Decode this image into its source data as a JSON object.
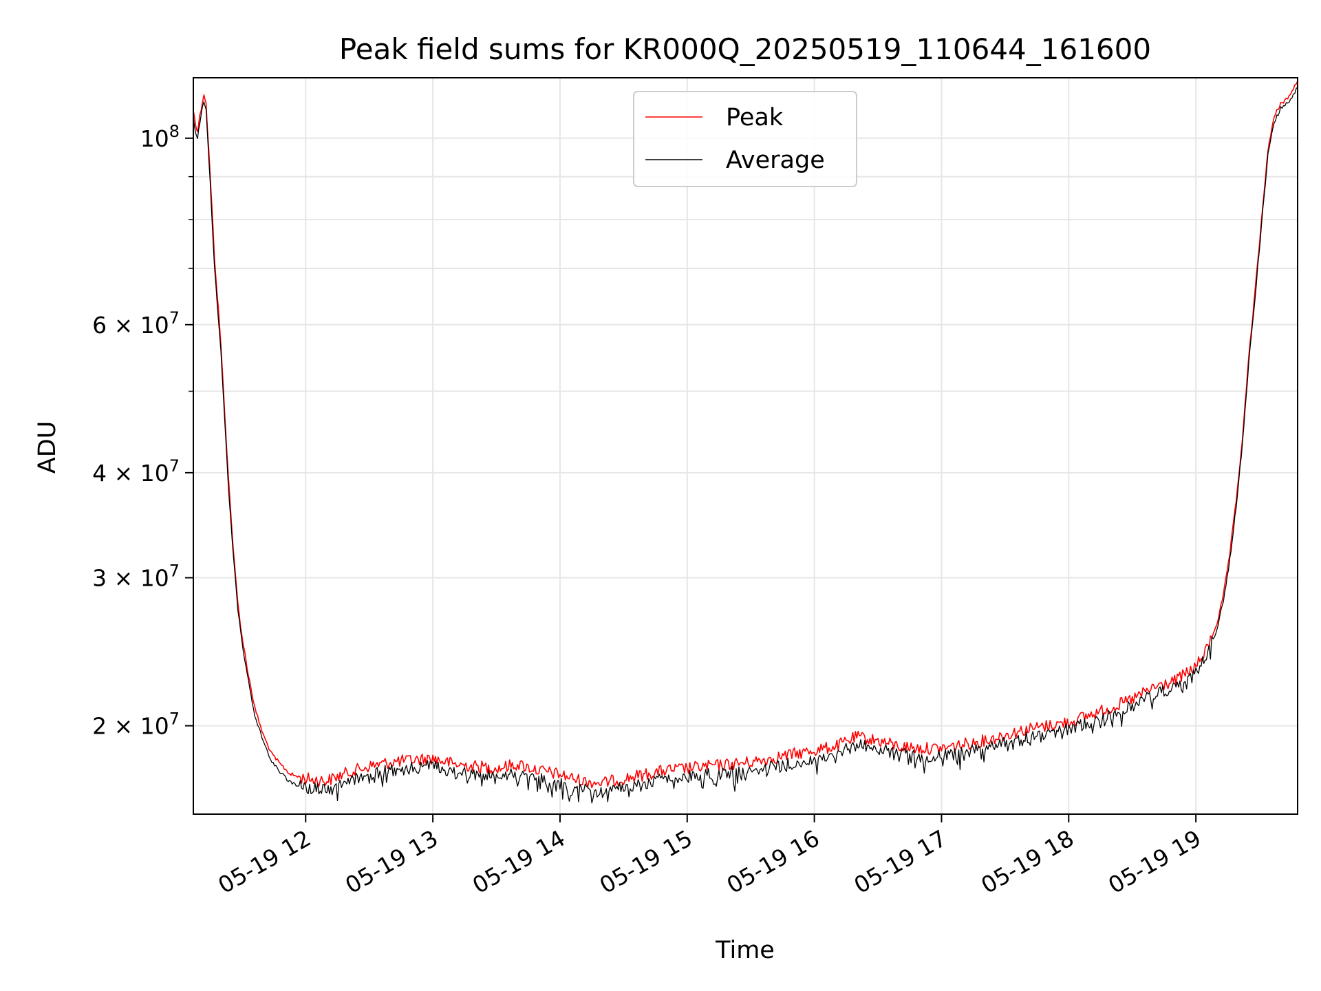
{
  "chart_data": {
    "type": "line",
    "title": "Peak field sums for KR000Q_20250519_110644_161600",
    "xlabel": "Time",
    "ylabel": "ADU",
    "yscale": "log",
    "xlim": [
      "2025-05-19 11:07",
      "2025-05-19 19:48"
    ],
    "ylim": [
      15700000,
      118000000
    ],
    "grid": true,
    "legend": {
      "placement": "top-center",
      "entries": [
        {
          "label": "Peak",
          "color": "#ff0000"
        },
        {
          "label": "Average",
          "color": "#000000"
        }
      ]
    },
    "x_ticks": [
      {
        "value": "2025-05-19 12:00",
        "label": "05-19 12"
      },
      {
        "value": "2025-05-19 13:00",
        "label": "05-19 13"
      },
      {
        "value": "2025-05-19 14:00",
        "label": "05-19 14"
      },
      {
        "value": "2025-05-19 15:00",
        "label": "05-19 15"
      },
      {
        "value": "2025-05-19 16:00",
        "label": "05-19 16"
      },
      {
        "value": "2025-05-19 17:00",
        "label": "05-19 17"
      },
      {
        "value": "2025-05-19 18:00",
        "label": "05-19 18"
      },
      {
        "value": "2025-05-19 19:00",
        "label": "05-19 19"
      }
    ],
    "y_ticks": [
      {
        "value": 20000000,
        "mant": "2",
        "exp": "7"
      },
      {
        "value": 30000000,
        "mant": "3",
        "exp": "7"
      },
      {
        "value": 40000000,
        "mant": "4",
        "exp": "7"
      },
      {
        "value": 60000000,
        "mant": "6",
        "exp": "7"
      },
      {
        "value": 100000000,
        "mant": "",
        "exp": "8"
      }
    ],
    "y_minor_ticks": [
      50000000,
      70000000,
      80000000,
      90000000
    ],
    "series": [
      {
        "name": "Peak",
        "color": "#ff0000",
        "x": [
          "2025-05-19 11:07",
          "2025-05-19 11:08",
          "2025-05-19 11:09",
          "2025-05-19 11:10",
          "2025-05-19 11:12",
          "2025-05-19 11:13",
          "2025-05-19 11:15",
          "2025-05-19 11:17",
          "2025-05-19 11:20",
          "2025-05-19 11:22",
          "2025-05-19 11:24",
          "2025-05-19 11:26",
          "2025-05-19 11:28",
          "2025-05-19 11:30",
          "2025-05-19 11:33",
          "2025-05-19 11:36",
          "2025-05-19 11:40",
          "2025-05-19 11:44",
          "2025-05-19 11:48",
          "2025-05-19 11:53",
          "2025-05-19 12:00",
          "2025-05-19 12:10",
          "2025-05-19 12:20",
          "2025-05-19 12:30",
          "2025-05-19 12:40",
          "2025-05-19 12:50",
          "2025-05-19 13:00",
          "2025-05-19 13:10",
          "2025-05-19 13:20",
          "2025-05-19 13:30",
          "2025-05-19 13:40",
          "2025-05-19 13:50",
          "2025-05-19 14:00",
          "2025-05-19 14:10",
          "2025-05-19 14:20",
          "2025-05-19 14:30",
          "2025-05-19 14:40",
          "2025-05-19 14:50",
          "2025-05-19 15:00",
          "2025-05-19 15:10",
          "2025-05-19 15:20",
          "2025-05-19 15:30",
          "2025-05-19 15:40",
          "2025-05-19 15:50",
          "2025-05-19 16:00",
          "2025-05-19 16:10",
          "2025-05-19 16:20",
          "2025-05-19 16:30",
          "2025-05-19 16:40",
          "2025-05-19 16:50",
          "2025-05-19 17:00",
          "2025-05-19 17:10",
          "2025-05-19 17:20",
          "2025-05-19 17:30",
          "2025-05-19 17:40",
          "2025-05-19 17:50",
          "2025-05-19 18:00",
          "2025-05-19 18:10",
          "2025-05-19 18:20",
          "2025-05-19 18:30",
          "2025-05-19 18:40",
          "2025-05-19 18:50",
          "2025-05-19 19:00",
          "2025-05-19 19:05",
          "2025-05-19 19:10",
          "2025-05-19 19:13",
          "2025-05-19 19:16",
          "2025-05-19 19:19",
          "2025-05-19 19:22",
          "2025-05-19 19:25",
          "2025-05-19 19:28",
          "2025-05-19 19:31",
          "2025-05-19 19:34",
          "2025-05-19 19:37",
          "2025-05-19 19:40",
          "2025-05-19 19:44",
          "2025-05-19 19:48"
        ],
        "values": [
          108000000,
          104000000,
          102000000,
          106000000,
          113000000,
          110000000,
          90000000,
          72000000,
          57000000,
          46000000,
          38000000,
          32000000,
          28000000,
          25500000,
          23000000,
          21000000,
          19500000,
          18500000,
          18000000,
          17500000,
          17300000,
          17200000,
          17600000,
          17900000,
          18100000,
          18200000,
          18300000,
          18000000,
          17900000,
          17800000,
          18000000,
          17700000,
          17500000,
          17200000,
          17100000,
          17300000,
          17500000,
          17700000,
          17800000,
          17900000,
          18000000,
          18100000,
          18300000,
          18500000,
          18700000,
          18900000,
          19400000,
          19200000,
          18900000,
          18800000,
          18800000,
          19000000,
          19200000,
          19500000,
          19800000,
          20000000,
          20200000,
          20600000,
          21000000,
          21500000,
          22200000,
          22600000,
          23500000,
          24600000,
          26500000,
          28600000,
          32000000,
          37000000,
          44000000,
          55000000,
          66000000,
          80000000,
          97000000,
          106000000,
          110000000,
          112000000,
          117000000
        ]
      },
      {
        "name": "Average",
        "color": "#000000",
        "x": [
          "2025-05-19 11:07",
          "2025-05-19 11:08",
          "2025-05-19 11:09",
          "2025-05-19 11:10",
          "2025-05-19 11:12",
          "2025-05-19 11:13",
          "2025-05-19 11:15",
          "2025-05-19 11:17",
          "2025-05-19 11:20",
          "2025-05-19 11:22",
          "2025-05-19 11:24",
          "2025-05-19 11:26",
          "2025-05-19 11:28",
          "2025-05-19 11:30",
          "2025-05-19 11:33",
          "2025-05-19 11:36",
          "2025-05-19 11:40",
          "2025-05-19 11:44",
          "2025-05-19 11:48",
          "2025-05-19 11:53",
          "2025-05-19 12:00",
          "2025-05-19 12:10",
          "2025-05-19 12:20",
          "2025-05-19 12:30",
          "2025-05-19 12:40",
          "2025-05-19 12:50",
          "2025-05-19 13:00",
          "2025-05-19 13:10",
          "2025-05-19 13:20",
          "2025-05-19 13:30",
          "2025-05-19 13:40",
          "2025-05-19 13:50",
          "2025-05-19 14:00",
          "2025-05-19 14:10",
          "2025-05-19 14:20",
          "2025-05-19 14:30",
          "2025-05-19 14:40",
          "2025-05-19 14:50",
          "2025-05-19 15:00",
          "2025-05-19 15:10",
          "2025-05-19 15:20",
          "2025-05-19 15:30",
          "2025-05-19 15:40",
          "2025-05-19 15:50",
          "2025-05-19 16:00",
          "2025-05-19 16:10",
          "2025-05-19 16:20",
          "2025-05-19 16:30",
          "2025-05-19 16:40",
          "2025-05-19 16:50",
          "2025-05-19 17:00",
          "2025-05-19 17:10",
          "2025-05-19 17:20",
          "2025-05-19 17:30",
          "2025-05-19 17:40",
          "2025-05-19 17:50",
          "2025-05-19 18:00",
          "2025-05-19 18:10",
          "2025-05-19 18:20",
          "2025-05-19 18:30",
          "2025-05-19 18:40",
          "2025-05-19 18:50",
          "2025-05-19 19:00",
          "2025-05-19 19:05",
          "2025-05-19 19:10",
          "2025-05-19 19:13",
          "2025-05-19 19:16",
          "2025-05-19 19:19",
          "2025-05-19 19:22",
          "2025-05-19 19:25",
          "2025-05-19 19:28",
          "2025-05-19 19:31",
          "2025-05-19 19:34",
          "2025-05-19 19:37",
          "2025-05-19 19:40",
          "2025-05-19 19:44",
          "2025-05-19 19:48"
        ],
        "values": [
          106000000,
          102000000,
          100000000,
          104000000,
          111000000,
          108000000,
          88000000,
          70000000,
          56000000,
          45000000,
          37000000,
          31500000,
          27500000,
          25000000,
          22600000,
          20600000,
          19100000,
          18100000,
          17600000,
          17100000,
          16900000,
          16800000,
          17200000,
          17500000,
          17700000,
          17800000,
          17900000,
          17600000,
          17500000,
          17400000,
          17600000,
          17300000,
          17100000,
          16800000,
          16700000,
          16900000,
          17100000,
          17300000,
          17400000,
          17500000,
          17600000,
          17600000,
          17900000,
          18100000,
          18300000,
          18500000,
          19000000,
          18800000,
          18500000,
          18400000,
          18400000,
          18600000,
          18800000,
          19100000,
          19400000,
          19600000,
          19800000,
          20200000,
          20600000,
          21100000,
          21800000,
          22200000,
          23100000,
          24200000,
          26100000,
          28200000,
          31500000,
          36400000,
          43300000,
          54200000,
          65000000,
          79000000,
          95500000,
          104500000,
          108500000,
          110500000,
          115000000
        ]
      }
    ]
  }
}
